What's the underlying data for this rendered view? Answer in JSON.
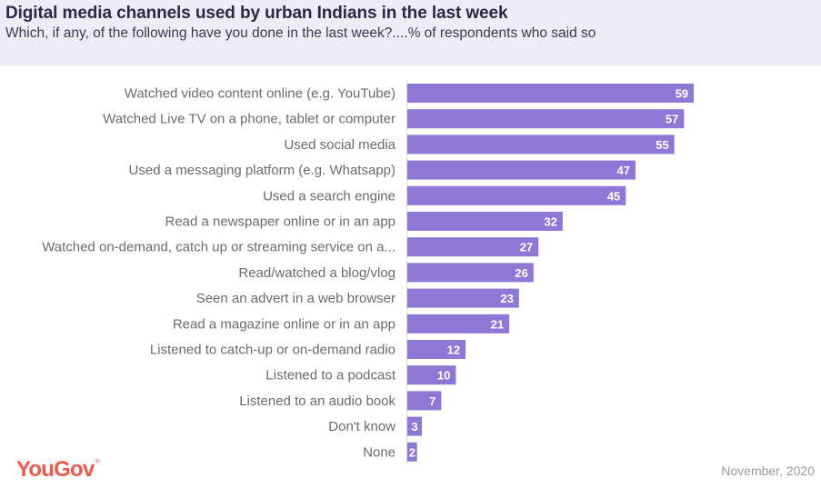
{
  "header": {
    "title": "Digital media channels used by urban Indians in the last week",
    "subtitle": "Which, if any, of the following have you done in the last week?....% of respondents who said so"
  },
  "footer": {
    "brand": "YouGov",
    "brand_mark": "®",
    "date": "November, 2020"
  },
  "colors": {
    "bar": "#8e78d6",
    "header_band": "#efecf7",
    "title": "#2b2948",
    "brand": "#f0584b"
  },
  "chart_data": {
    "type": "bar",
    "orientation": "horizontal",
    "title": "Digital media channels used by urban Indians in the last week",
    "subtitle": "Which, if any, of the following have you done in the last week?....% of respondents who said so",
    "xlabel": "",
    "ylabel": "",
    "unit": "% of respondents",
    "xlim": [
      0,
      60
    ],
    "grid": false,
    "legend": "none",
    "categories": [
      "Watched video content online (e.g. YouTube)",
      "Watched Live TV on a phone, tablet or computer",
      "Used social media",
      "Used a messaging platform (e.g. Whatsapp)",
      "Used a search engine",
      "Read a newspaper online or in an app",
      "Watched on-demand, catch up or streaming service on a...",
      "Read/watched a blog/vlog",
      "Seen an advert in a web browser",
      "Read a magazine online or in an app",
      "Listened to catch-up or on-demand radio",
      "Listened to a podcast",
      "Listened to an audio book",
      "Don't know",
      "None"
    ],
    "values": [
      59,
      57,
      55,
      47,
      45,
      32,
      27,
      26,
      23,
      21,
      12,
      10,
      7,
      3,
      2
    ]
  }
}
